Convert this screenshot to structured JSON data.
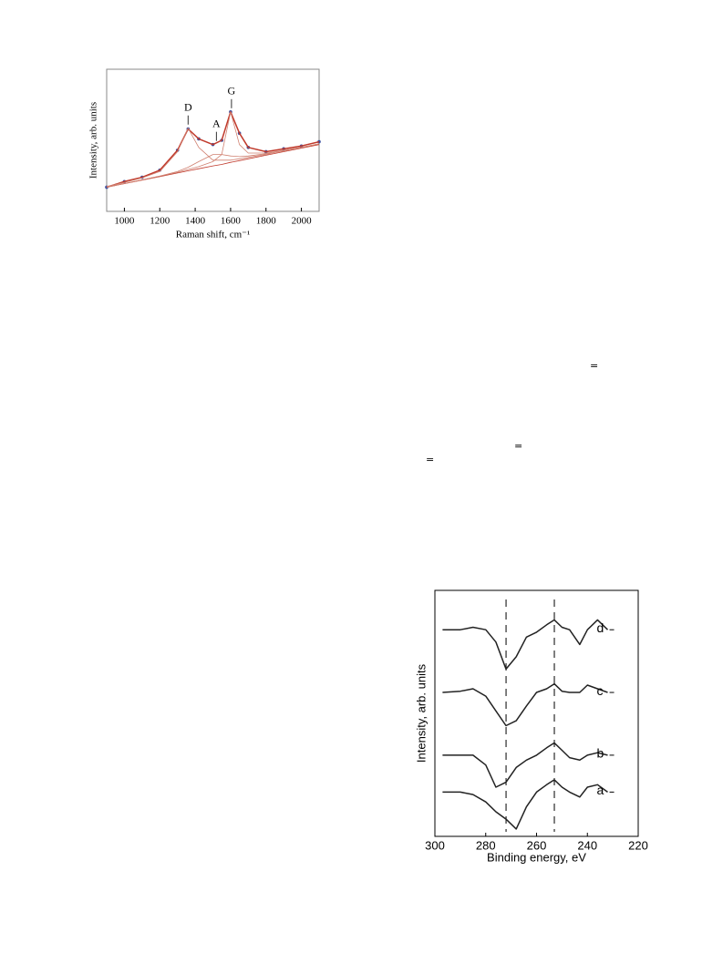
{
  "chart_data": [
    {
      "type": "line",
      "x_label": "Raman shift, cm⁻¹",
      "y_label": "Intensity, arb. units",
      "x": [
        900,
        1000,
        1100,
        1200,
        1300,
        1360,
        1420,
        1500,
        1550,
        1600,
        1650,
        1700,
        1800,
        1900,
        2000,
        2100
      ],
      "series": [
        {
          "color": "#3a4fa0",
          "style": "dots",
          "values": [
            0.17,
            0.21,
            0.24,
            0.29,
            0.43,
            0.58,
            0.51,
            0.47,
            0.5,
            0.7,
            0.55,
            0.45,
            0.42,
            0.44,
            0.46,
            0.49
          ]
        },
        {
          "color": "#c0392b",
          "style": "line",
          "values": [
            0.17,
            0.21,
            0.24,
            0.29,
            0.43,
            0.58,
            0.51,
            0.47,
            0.5,
            0.7,
            0.55,
            0.45,
            0.42,
            0.44,
            0.46,
            0.49
          ]
        },
        {
          "color": "#c0392b",
          "style": "thin",
          "values": [
            0.17,
            0.195,
            0.22,
            0.245,
            0.27,
            0.285,
            0.3,
            0.32,
            0.33,
            0.345,
            0.357,
            0.37,
            0.395,
            0.42,
            0.445,
            0.47
          ]
        },
        {
          "color": "#d08070",
          "style": "thin",
          "values": [
            0.175,
            0.203,
            0.236,
            0.28,
            0.42,
            0.585,
            0.45,
            0.36,
            0.36,
            0.36,
            0.37,
            0.38,
            0.4,
            0.43,
            0.45,
            0.475
          ]
        },
        {
          "color": "#d08070",
          "style": "thin",
          "values": [
            0.17,
            0.196,
            0.222,
            0.248,
            0.28,
            0.31,
            0.35,
            0.4,
            0.4,
            0.39,
            0.385,
            0.39,
            0.405,
            0.425,
            0.45,
            0.475
          ]
        },
        {
          "color": "#d08070",
          "style": "thin",
          "values": [
            0.17,
            0.196,
            0.222,
            0.248,
            0.275,
            0.295,
            0.315,
            0.35,
            0.4,
            0.7,
            0.47,
            0.41,
            0.41,
            0.43,
            0.45,
            0.475
          ]
        }
      ],
      "annotations": [
        {
          "text": "D",
          "x": 1360
        },
        {
          "text": "A",
          "x": 1520
        },
        {
          "text": "G",
          "x": 1605
        }
      ],
      "xlim": [
        900,
        2100
      ],
      "xticks": [
        1000,
        1200,
        1400,
        1600,
        1800,
        2000
      ],
      "ylim": [
        0,
        1
      ]
    },
    {
      "type": "line",
      "x_label": "Binding energy, eV",
      "y_label": "Intensity, arb. units",
      "x": [
        297,
        290,
        285,
        280,
        276,
        272,
        268,
        264,
        260,
        256,
        253,
        250,
        247,
        243,
        240,
        236,
        232
      ],
      "series": [
        {
          "name": "d",
          "color": "#222222",
          "values": [
            0.84,
            0.84,
            0.85,
            0.84,
            0.79,
            0.68,
            0.73,
            0.81,
            0.83,
            0.86,
            0.88,
            0.85,
            0.84,
            0.78,
            0.84,
            0.88,
            0.84
          ]
        },
        {
          "name": "c",
          "color": "#222222",
          "values": [
            0.585,
            0.59,
            0.6,
            0.57,
            0.51,
            0.45,
            0.47,
            0.53,
            0.585,
            0.6,
            0.62,
            0.59,
            0.585,
            0.585,
            0.615,
            0.6,
            0.585
          ]
        },
        {
          "name": "b",
          "color": "#222222",
          "values": [
            0.33,
            0.33,
            0.33,
            0.29,
            0.2,
            0.22,
            0.28,
            0.31,
            0.33,
            0.36,
            0.38,
            0.35,
            0.32,
            0.31,
            0.33,
            0.34,
            0.33
          ]
        },
        {
          "name": "a",
          "color": "#222222",
          "values": [
            0.18,
            0.18,
            0.17,
            0.14,
            0.1,
            0.07,
            0.03,
            0.12,
            0.18,
            0.21,
            0.23,
            0.2,
            0.18,
            0.16,
            0.2,
            0.21,
            0.18
          ]
        }
      ],
      "reference_lines": [
        272,
        253
      ],
      "xlim": [
        300,
        220
      ],
      "xticks": [
        300,
        280,
        260,
        240,
        220
      ],
      "ylim": [
        0,
        1
      ]
    }
  ],
  "page_marks": [
    "=",
    "=",
    "="
  ]
}
